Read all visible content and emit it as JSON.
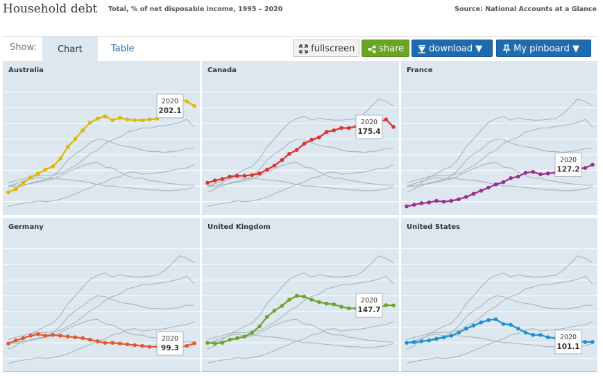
{
  "header": {
    "title": "Household debt",
    "subtitle": "Total, % of net disposable income, 1995 – 2020",
    "source": "Source: National Accounts at a Glance"
  },
  "toolbar": {
    "show_label": "Show:",
    "tabs": [
      {
        "label": "Chart",
        "active": true
      },
      {
        "label": "Table",
        "active": false
      }
    ],
    "fullscreen_label": "fullscreen",
    "share_label": "share",
    "download_label": "download",
    "pinboard_label": "My pinboard"
  },
  "colors": {
    "background": "#dce7f0",
    "gridline": "#ffffff",
    "context_line": "#a9b4bd",
    "Australia": "#e3b505",
    "Canada": "#e0302b",
    "France": "#9b2d8e",
    "Germany": "#e5562a",
    "United Kingdom": "#6aa524",
    "United States": "#1a90d4"
  },
  "chart_data": {
    "type": "line",
    "title": "Household debt",
    "subtitle": "Total, % of net disposable income, 1995 – 2020",
    "xlim": [
      1995,
      2020
    ],
    "ylim": [
      70,
      240
    ],
    "grid": true,
    "x": [
      1995,
      1996,
      1997,
      1998,
      1999,
      2000,
      2001,
      2002,
      2003,
      2004,
      2005,
      2006,
      2007,
      2008,
      2009,
      2010,
      2011,
      2012,
      2013,
      2014,
      2015,
      2016,
      2017,
      2018,
      2019,
      2020
    ],
    "series": [
      {
        "name": "Australia",
        "label_year": "2020",
        "label_value": "202.1",
        "values": [
          92,
          96,
          104,
          111,
          116,
          121,
          125,
          135,
          150,
          160,
          171,
          181,
          186,
          189,
          184,
          187,
          185,
          184,
          184,
          185,
          186,
          192,
          201,
          211,
          208,
          202.1
        ]
      },
      {
        "name": "Canada",
        "label_year": "2020",
        "label_value": "175.4",
        "values": [
          104,
          107,
          109,
          112,
          113,
          113,
          114,
          116,
          121,
          126,
          133,
          141,
          146,
          154,
          159,
          162,
          169,
          171,
          174,
          174,
          176,
          177,
          179,
          181,
          185,
          175.4
        ]
      },
      {
        "name": "France",
        "label_year": "2020",
        "label_value": "127.2",
        "values": [
          74,
          76,
          78,
          79,
          81,
          80,
          81,
          83,
          86,
          90,
          94,
          98,
          102,
          105,
          110,
          112,
          117,
          118,
          115,
          116,
          117,
          118,
          120,
          122,
          123,
          127.2
        ]
      },
      {
        "name": "Germany",
        "label_year": "2020",
        "label_value": "99.3",
        "values": [
          99,
          103,
          106,
          109,
          111,
          109,
          110,
          109,
          108,
          107,
          106,
          104,
          102,
          100,
          100,
          99,
          98,
          97,
          96,
          95,
          95,
          94,
          94,
          95,
          96,
          99.3
        ]
      },
      {
        "name": "United Kingdom",
        "label_year": "2020",
        "label_value": "147.7",
        "values": [
          100,
          99,
          100,
          104,
          106,
          108,
          113,
          121,
          133,
          141,
          147,
          155,
          160,
          159,
          155,
          152,
          150,
          149,
          146,
          144,
          144,
          143,
          144,
          145,
          148,
          147.7
        ]
      },
      {
        "name": "United States",
        "label_year": "2020",
        "label_value": "101.1",
        "values": [
          100,
          101,
          102,
          103,
          105,
          107,
          109,
          113,
          118,
          122,
          126,
          129,
          130,
          124,
          123,
          118,
          113,
          110,
          110,
          107,
          106,
          104,
          103,
          102,
          101,
          101.1
        ]
      }
    ]
  }
}
